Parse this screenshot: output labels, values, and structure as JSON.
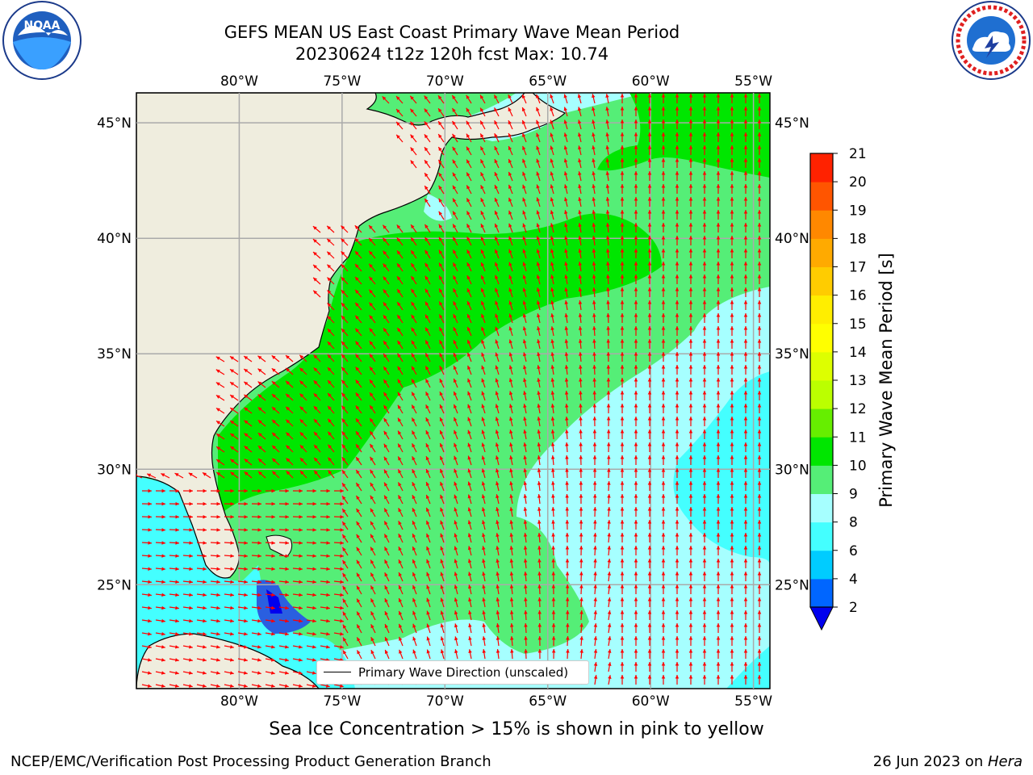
{
  "title": {
    "line1": "GEFS MEAN US East Coast Primary Wave Mean Period",
    "line2": "20230624 t12z 120h fcst   Max: 10.74"
  },
  "logos": {
    "left": {
      "name": "noaa-logo",
      "text": "NOAA"
    },
    "right": {
      "name": "nws-logo",
      "text": "NATIONAL WEATHER SERVICE"
    }
  },
  "map": {
    "projection": "PlateCarree",
    "lon_range": [
      -85,
      -54.2
    ],
    "lat_range": [
      20.5,
      46.3
    ],
    "top_ticks": [
      "80°W",
      "75°W",
      "70°W",
      "65°W",
      "60°W",
      "55°W"
    ],
    "bottom_ticks": [
      "80°W",
      "75°W",
      "70°W",
      "65°W",
      "60°W",
      "55°W"
    ],
    "left_ticks": [
      "45°N",
      "40°N",
      "35°N",
      "30°N",
      "25°N"
    ],
    "right_ticks": [
      "45°N",
      "40°N",
      "35°N",
      "30°N",
      "25°N"
    ],
    "gridlines": true,
    "land_color": "#efedde",
    "arrow_color": "#ff0000",
    "legend_text": "Primary Wave Direction (unscaled)"
  },
  "colorbar": {
    "title": "Primary Wave Mean Period [s]",
    "tick_labels": [
      "2",
      "4",
      "6",
      "8",
      "9",
      "10",
      "11",
      "12",
      "13",
      "14",
      "15",
      "16",
      "17",
      "18",
      "19",
      "20",
      "21"
    ],
    "colors": [
      "#0066ff",
      "#00ccff",
      "#44ffff",
      "#a6ffff",
      "#55ee77",
      "#00e600",
      "#66ee00",
      "#bbff00",
      "#ddff00",
      "#ffff00",
      "#ffee00",
      "#ffcc00",
      "#ffaa00",
      "#ff8800",
      "#ff5500",
      "#ff2200"
    ],
    "over_color": "#ff0000",
    "under_color": "#0000ee"
  },
  "note": "Sea Ice Concentration > 15% is shown in pink to yellow",
  "footer": {
    "left": "NCEP/EMC/Verification Post Processing Product Generation Branch",
    "right_date": "26 Jun 2023 on ",
    "right_host": "Hera"
  }
}
